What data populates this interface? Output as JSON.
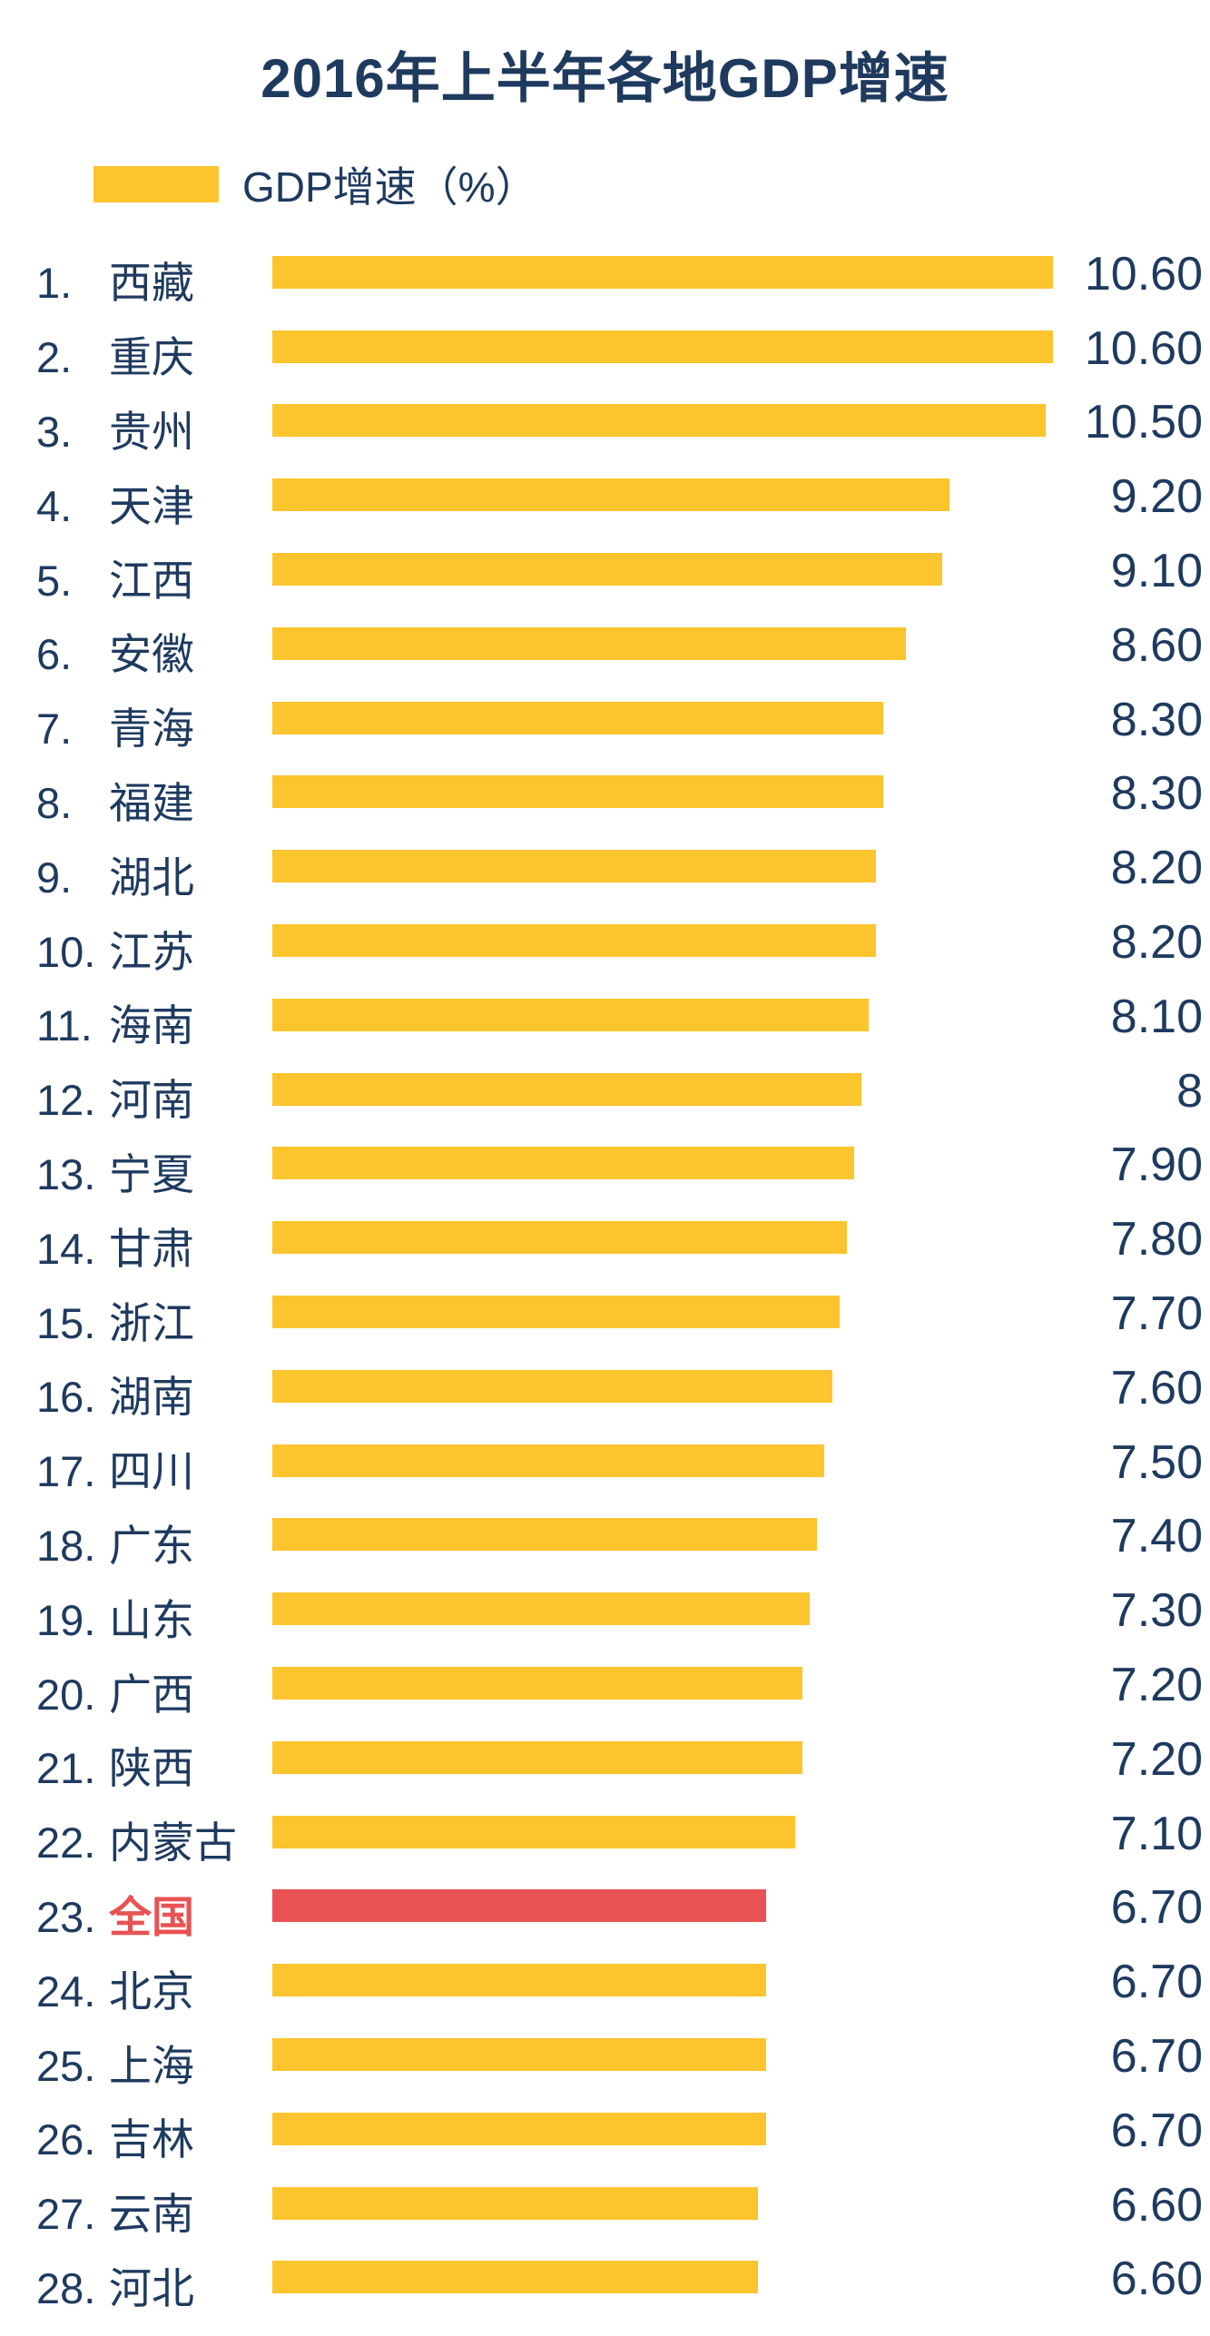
{
  "title": "2016年上半年各地GDP增速",
  "legend": {
    "label": "GDP增速（%）",
    "swatch_color": "#fcc42d"
  },
  "colors": {
    "bar": "#fcc42d",
    "highlight": "#e85252",
    "text": "#1e3a5f",
    "background": "#ffffff"
  },
  "chart_data": {
    "type": "bar",
    "orientation": "horizontal",
    "title": "2016年上半年各地GDP增速",
    "legend_label": "GDP增速（%）",
    "xlabel": "",
    "ylabel": "",
    "xlim": [
      0,
      10.6
    ],
    "grid": false,
    "legend_position": "top-left",
    "highlight_index": 22,
    "categories": [
      "西藏",
      "重庆",
      "贵州",
      "天津",
      "江西",
      "安徽",
      "青海",
      "福建",
      "湖北",
      "江苏",
      "海南",
      "河南",
      "宁夏",
      "甘肃",
      "浙江",
      "湖南",
      "四川",
      "广东",
      "山东",
      "广西",
      "陕西",
      "内蒙古",
      "全国",
      "北京",
      "上海",
      "吉林",
      "云南",
      "河北"
    ],
    "ranks": [
      "1.",
      "2.",
      "3.",
      "4.",
      "5.",
      "6.",
      "7.",
      "8.",
      "9.",
      "10.",
      "11.",
      "12.",
      "13.",
      "14.",
      "15.",
      "16.",
      "17.",
      "18.",
      "19.",
      "20.",
      "21.",
      "22.",
      "23.",
      "24.",
      "25.",
      "26.",
      "27.",
      "28."
    ],
    "values": [
      10.6,
      10.6,
      10.5,
      9.2,
      9.1,
      8.6,
      8.3,
      8.3,
      8.2,
      8.2,
      8.1,
      8,
      7.9,
      7.8,
      7.7,
      7.6,
      7.5,
      7.4,
      7.3,
      7.2,
      7.2,
      7.1,
      6.7,
      6.7,
      6.7,
      6.7,
      6.6,
      6.6
    ],
    "value_labels": [
      "10.60",
      "10.60",
      "10.50",
      "9.20",
      "9.10",
      "8.60",
      "8.30",
      "8.30",
      "8.20",
      "8.20",
      "8.10",
      "8",
      "7.90",
      "7.80",
      "7.70",
      "7.60",
      "7.50",
      "7.40",
      "7.30",
      "7.20",
      "7.20",
      "7.10",
      "6.70",
      "6.70",
      "6.70",
      "6.70",
      "6.60",
      "6.60"
    ]
  }
}
